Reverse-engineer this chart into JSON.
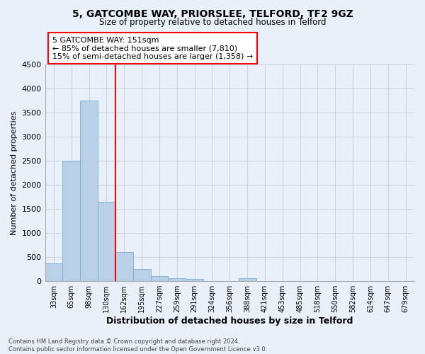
{
  "title": "5, GATCOMBE WAY, PRIORSLEE, TELFORD, TF2 9GZ",
  "subtitle": "Size of property relative to detached houses in Telford",
  "xlabel": "Distribution of detached houses by size in Telford",
  "ylabel": "Number of detached properties",
  "bar_color": "#b8d0e8",
  "bar_edge_color": "#7aafd4",
  "background_color": "#e8f0fa",
  "grid_color": "#c8d0dc",
  "categories": [
    "33sqm",
    "65sqm",
    "98sqm",
    "130sqm",
    "162sqm",
    "195sqm",
    "227sqm",
    "259sqm",
    "291sqm",
    "324sqm",
    "356sqm",
    "388sqm",
    "421sqm",
    "453sqm",
    "485sqm",
    "518sqm",
    "550sqm",
    "582sqm",
    "614sqm",
    "647sqm",
    "679sqm"
  ],
  "values": [
    375,
    2500,
    3750,
    1640,
    600,
    245,
    105,
    60,
    40,
    0,
    0,
    55,
    0,
    0,
    0,
    0,
    0,
    0,
    0,
    0,
    0
  ],
  "ylim": [
    0,
    4500
  ],
  "yticks": [
    0,
    500,
    1000,
    1500,
    2000,
    2500,
    3000,
    3500,
    4000,
    4500
  ],
  "red_line_x": 3.5,
  "annotation_text_line1": "5 GATCOMBE WAY: 151sqm",
  "annotation_text_line2": "← 85% of detached houses are smaller (7,810)",
  "annotation_text_line3": "15% of semi-detached houses are larger (1,358) →",
  "annotation_box_color": "white",
  "annotation_box_edge": "red",
  "footer_line1": "Contains HM Land Registry data © Crown copyright and database right 2024.",
  "footer_line2": "Contains public sector information licensed under the Open Government Licence v3.0."
}
